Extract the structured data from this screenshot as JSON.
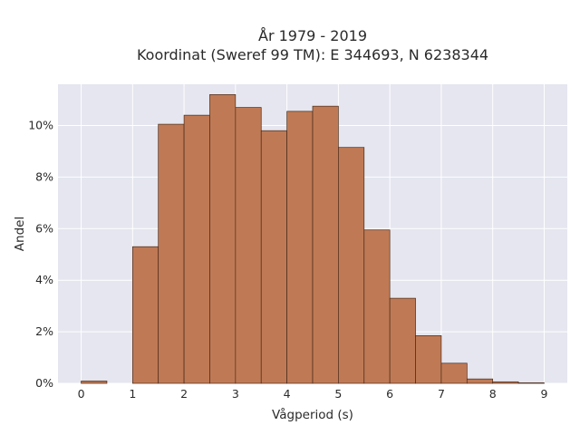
{
  "chart_data": {
    "type": "bar",
    "title": "År 1979 - 2019",
    "subtitle": "Koordinat (Sweref 99 TM): E 344693, N 6238344",
    "xlabel": "Vågperiod (s)",
    "ylabel": "Andel",
    "bin_width": 0.5,
    "bins": [
      {
        "x0": 0.0,
        "value": 0.09
      },
      {
        "x0": 0.5,
        "value": 0.0
      },
      {
        "x0": 1.0,
        "value": 5.3
      },
      {
        "x0": 1.5,
        "value": 10.05
      },
      {
        "x0": 2.0,
        "value": 10.4
      },
      {
        "x0": 2.5,
        "value": 11.2
      },
      {
        "x0": 3.0,
        "value": 10.7
      },
      {
        "x0": 3.5,
        "value": 9.8
      },
      {
        "x0": 4.0,
        "value": 10.55
      },
      {
        "x0": 4.5,
        "value": 10.75
      },
      {
        "x0": 5.0,
        "value": 9.15
      },
      {
        "x0": 5.5,
        "value": 5.95
      },
      {
        "x0": 6.0,
        "value": 3.3
      },
      {
        "x0": 6.5,
        "value": 1.85
      },
      {
        "x0": 7.0,
        "value": 0.78
      },
      {
        "x0": 7.5,
        "value": 0.17
      },
      {
        "x0": 8.0,
        "value": 0.06
      },
      {
        "x0": 8.5,
        "value": 0.02
      }
    ],
    "x_ticks": [
      0,
      1,
      2,
      3,
      4,
      5,
      6,
      7,
      8,
      9
    ],
    "x_tick_labels": [
      "0",
      "1",
      "2",
      "3",
      "4",
      "5",
      "6",
      "7",
      "8",
      "9"
    ],
    "y_ticks": [
      0,
      2,
      4,
      6,
      8,
      10
    ],
    "y_tick_labels": [
      "0%",
      "2%",
      "4%",
      "6%",
      "8%",
      "10%"
    ],
    "xlim": [
      -0.45,
      9.45
    ],
    "ylim": [
      0,
      11.6
    ],
    "grid": true,
    "colors": {
      "bar_fill": "#bf7a55",
      "bar_stroke": "#4a2a1a",
      "plot_bg": "#e5e6ef",
      "grid": "#ffffff"
    }
  }
}
